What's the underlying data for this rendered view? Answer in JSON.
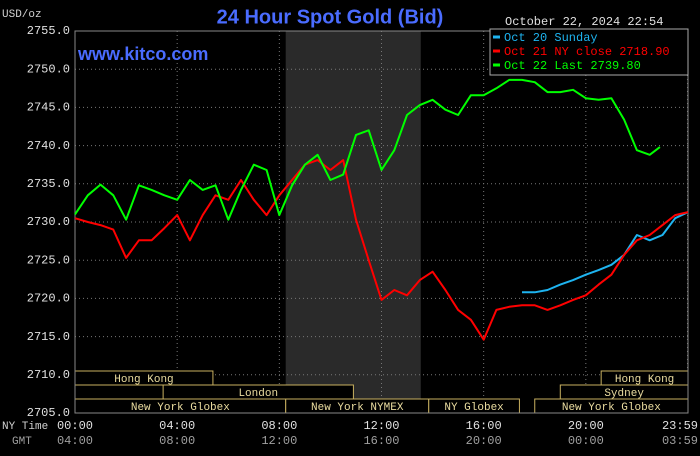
{
  "chart_data": {
    "type": "line",
    "title": "24 Hour Spot Gold (Bid)",
    "y_axis_label": "USD/oz",
    "watermark": "www.kitco.com",
    "timestamp": "October 22, 2024 22:54",
    "x_row_labels": [
      "NY Time",
      "GMT"
    ],
    "xlim": [
      0,
      24
    ],
    "ylim": [
      2705,
      2755
    ],
    "xticks": [
      {
        "value": 0,
        "label": "00:00"
      },
      {
        "value": 4,
        "label": "04:00"
      },
      {
        "value": 8,
        "label": "08:00"
      },
      {
        "value": 12,
        "label": "12:00"
      },
      {
        "value": 16,
        "label": "16:00"
      },
      {
        "value": 20,
        "label": "20:00"
      },
      {
        "value": 23.98,
        "label": "23:59"
      }
    ],
    "xticks_gmt": [
      {
        "value": 0,
        "label": "04:00"
      },
      {
        "value": 4,
        "label": "08:00"
      },
      {
        "value": 8,
        "label": "12:00"
      },
      {
        "value": 12,
        "label": "16:00"
      },
      {
        "value": 16,
        "label": "20:00"
      },
      {
        "value": 20,
        "label": "00:00"
      },
      {
        "value": 23.98,
        "label": "03:59"
      }
    ],
    "yticks": [
      {
        "value": 2705,
        "label": "2705.0"
      },
      {
        "value": 2710,
        "label": "2710.0"
      },
      {
        "value": 2715,
        "label": "2715.0"
      },
      {
        "value": 2720,
        "label": "2720.0"
      },
      {
        "value": 2725,
        "label": "2725.0"
      },
      {
        "value": 2730,
        "label": "2730.0"
      },
      {
        "value": 2735,
        "label": "2735.0"
      },
      {
        "value": 2740,
        "label": "2740.0"
      },
      {
        "value": 2745,
        "label": "2745.0"
      },
      {
        "value": 2750,
        "label": "2750.0"
      },
      {
        "value": 2755,
        "label": "2755.0"
      }
    ],
    "grid": true,
    "series": [
      {
        "name": "Oct 20 Sunday",
        "color": "#1eb4f0",
        "x": [
          17.5,
          18,
          18.5,
          19,
          19.5,
          20,
          20.5,
          21,
          21.5,
          22,
          22.5,
          23,
          23.5,
          24
        ],
        "values": [
          2720.8,
          2720.8,
          2721.1,
          2721.8,
          2722.4,
          2723.1,
          2723.7,
          2724.4,
          2725.7,
          2728.3,
          2727.6,
          2728.3,
          2730.5,
          2731.3
        ]
      },
      {
        "name": "Oct 21 NY close 2718.90",
        "color": "#ff0000",
        "x": [
          0,
          0.5,
          1,
          1.5,
          2,
          2.5,
          3,
          3.5,
          4,
          4.5,
          5,
          5.5,
          6,
          6.5,
          7,
          7.5,
          8,
          8.5,
          9,
          9.5,
          10,
          10.5,
          11,
          11.5,
          12,
          12.5,
          13,
          13.5,
          14,
          14.5,
          15,
          15.5,
          16,
          16.5,
          17,
          17.5,
          18,
          18.5,
          19,
          19.5,
          20,
          20.5,
          21,
          21.5,
          22,
          22.5,
          23,
          23.5,
          24
        ],
        "values": [
          2730.5,
          2730.0,
          2729.6,
          2729.0,
          2725.3,
          2727.6,
          2727.6,
          2729.2,
          2730.9,
          2727.6,
          2730.9,
          2733.5,
          2732.9,
          2735.5,
          2732.9,
          2730.9,
          2733.5,
          2735.5,
          2737.5,
          2738.1,
          2736.8,
          2738.1,
          2730.3,
          2725.0,
          2719.8,
          2721.1,
          2720.4,
          2722.4,
          2723.5,
          2721.1,
          2718.5,
          2717.2,
          2714.6,
          2718.5,
          2718.9,
          2719.1,
          2719.1,
          2718.5,
          2719.1,
          2719.8,
          2720.4,
          2721.8,
          2723.1,
          2725.7,
          2727.6,
          2728.3,
          2729.6,
          2730.9,
          2731.3
        ]
      },
      {
        "name": "Oct 22 Last 2739.80",
        "color": "#00ff00",
        "x": [
          0,
          0.5,
          1,
          1.5,
          2,
          2.5,
          3,
          3.5,
          4,
          4.5,
          5,
          5.5,
          6,
          6.5,
          7,
          7.5,
          8,
          8.5,
          9,
          9.5,
          10,
          10.5,
          11,
          11.5,
          12,
          12.5,
          13,
          13.5,
          14,
          14.5,
          15,
          15.5,
          16,
          16.5,
          17,
          17.5,
          18,
          18.5,
          19,
          19.5,
          20,
          20.5,
          21,
          21.5,
          22,
          22.5,
          22.9
        ],
        "values": [
          2731.0,
          2733.5,
          2734.9,
          2733.5,
          2730.3,
          2734.8,
          2734.2,
          2733.5,
          2732.9,
          2735.5,
          2734.2,
          2734.8,
          2730.3,
          2734.2,
          2737.5,
          2736.8,
          2730.9,
          2734.8,
          2737.5,
          2738.8,
          2735.5,
          2736.2,
          2741.4,
          2742.0,
          2736.8,
          2739.4,
          2744.0,
          2745.3,
          2746.0,
          2744.7,
          2744.0,
          2746.6,
          2746.6,
          2747.5,
          2748.6,
          2748.6,
          2748.3,
          2747.0,
          2747.0,
          2747.3,
          2746.2,
          2746.0,
          2746.2,
          2743.4,
          2739.4,
          2738.8,
          2739.8
        ]
      }
    ],
    "sessions": [
      {
        "label": "Hong Kong",
        "start": 0,
        "end": 5.4,
        "row": 0
      },
      {
        "label": "Hong Kong",
        "start": 20.6,
        "end": 24,
        "row": 0
      },
      {
        "label": "London",
        "start": 3.45,
        "end": 10.9,
        "row": 1
      },
      {
        "label": "Sydney",
        "start": 19,
        "end": 24,
        "row": 1
      },
      {
        "label": "New York Globex",
        "start": 0,
        "end": 8.25,
        "row": 2
      },
      {
        "label": "New York NYMEX",
        "start": 8.25,
        "end": 13.85,
        "row": 2,
        "shaded": true
      },
      {
        "label": "NY Globex",
        "start": 13.85,
        "end": 17.4,
        "row": 2
      },
      {
        "label": "New York Globex",
        "start": 18,
        "end": 24,
        "row": 2
      }
    ]
  }
}
